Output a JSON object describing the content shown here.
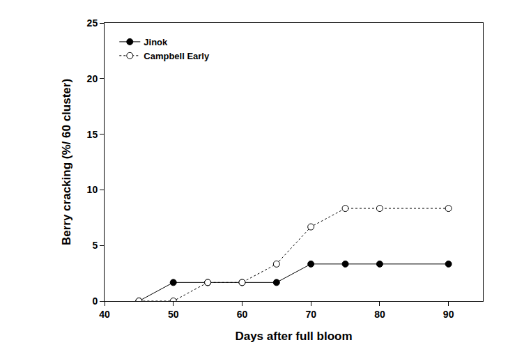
{
  "chart_data": {
    "type": "line",
    "x_label": "Days after full bloom",
    "y_label": "Berry cracking (%/ 60 cluster)",
    "x": [
      45,
      50,
      55,
      60,
      65,
      70,
      75,
      80,
      90
    ],
    "series": [
      {
        "name": "Jinok",
        "color": "#000000",
        "marker": "filled",
        "line_style": "solid",
        "values": [
          0,
          1.67,
          1.67,
          1.67,
          1.67,
          3.33,
          3.33,
          3.33,
          3.33
        ]
      },
      {
        "name": "Campbell Early",
        "color": "#000000",
        "marker": "open",
        "line_style": "dotted",
        "values": [
          0,
          0,
          1.67,
          1.67,
          3.33,
          6.67,
          8.33,
          8.33,
          8.33
        ]
      }
    ],
    "xlim": [
      40,
      95
    ],
    "xticks": [
      40,
      50,
      60,
      70,
      80,
      90
    ],
    "ylim": [
      0,
      25
    ],
    "yticks": [
      0,
      5,
      10,
      15,
      20,
      25
    ],
    "grid": false,
    "legend": "top-left"
  }
}
